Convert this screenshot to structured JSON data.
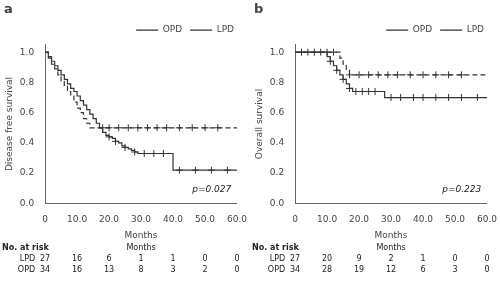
{
  "chart_data": [
    {
      "type": "step",
      "title": "a",
      "xlabel": "Months",
      "ylabel": "Disease free survival",
      "annotation": "p=0.027",
      "xlim": [
        0,
        60
      ],
      "ylim": [
        0.0,
        1.05
      ],
      "xticks": [
        0,
        {
          "value": 10,
          "label": "10.0"
        },
        {
          "value": 20,
          "label": "20.0"
        },
        {
          "value": 30,
          "label": "30.0"
        },
        {
          "value": 40,
          "label": "40.0"
        },
        {
          "value": 50,
          "label": "50.0"
        },
        {
          "value": 60,
          "label": "60.0"
        }
      ],
      "yticks": [
        {
          "value": 0.0,
          "label": "0.0"
        },
        0.2,
        0.4,
        0.6,
        0.8,
        {
          "value": 1.0,
          "label": "1.0"
        }
      ],
      "grid": false,
      "legend": "upper right",
      "series": [
        {
          "name": "OPD",
          "color": "#333333",
          "line_style": "solid",
          "x": [
            0,
            1,
            2,
            3,
            4,
            5,
            6,
            7,
            8,
            9,
            10,
            11,
            12,
            13,
            14,
            15,
            16,
            17,
            18,
            19,
            20,
            21,
            22,
            23,
            24,
            25,
            26,
            27,
            28,
            29,
            30,
            31,
            32,
            33,
            34,
            35,
            36,
            37,
            38,
            39,
            40,
            45,
            50,
            55,
            60
          ],
          "values": [
            1.0,
            0.97,
            0.94,
            0.91,
            0.88,
            0.85,
            0.82,
            0.79,
            0.76,
            0.74,
            0.71,
            0.68,
            0.65,
            0.62,
            0.59,
            0.56,
            0.53,
            0.5,
            0.47,
            0.45,
            0.44,
            0.43,
            0.41,
            0.4,
            0.38,
            0.37,
            0.36,
            0.35,
            0.34,
            0.33,
            0.33,
            0.33,
            0.33,
            0.33,
            0.33,
            0.33,
            0.33,
            0.33,
            0.33,
            0.33,
            0.22,
            0.22,
            0.22,
            0.22,
            0.22
          ],
          "censors": {
            "marker": "+",
            "x": [
              20,
              22,
              25,
              28,
              31,
              34,
              37,
              42,
              47,
              52,
              57
            ],
            "values": [
              0.44,
              0.41,
              0.37,
              0.34,
              0.33,
              0.33,
              0.33,
              0.22,
              0.22,
              0.22,
              0.22
            ]
          }
        },
        {
          "name": "LPD",
          "color": "#333333",
          "line_style": "dashed",
          "x": [
            0,
            1,
            2,
            3,
            4,
            5,
            6,
            7,
            8,
            9,
            10,
            11,
            12,
            13,
            14,
            15,
            16,
            17,
            18,
            20,
            22,
            25,
            28,
            30,
            35,
            40,
            45,
            50,
            55,
            60
          ],
          "values": [
            1.0,
            0.96,
            0.92,
            0.89,
            0.85,
            0.81,
            0.78,
            0.74,
            0.71,
            0.67,
            0.63,
            0.6,
            0.56,
            0.53,
            0.5,
            0.5,
            0.5,
            0.5,
            0.5,
            0.5,
            0.5,
            0.5,
            0.5,
            0.5,
            0.5,
            0.5,
            0.5,
            0.5,
            0.5,
            0.5
          ],
          "censors": {
            "marker": "+",
            "x": [
              18,
              20,
              23,
              26,
              29,
              32,
              35,
              38,
              42,
              46,
              50,
              54
            ],
            "values": [
              0.5,
              0.5,
              0.5,
              0.5,
              0.5,
              0.5,
              0.5,
              0.5,
              0.5,
              0.5,
              0.5,
              0.5
            ]
          }
        }
      ],
      "risk_table": {
        "title": "No. at risk",
        "label": "Months",
        "x": [
          0,
          10,
          20,
          30,
          40,
          50,
          60
        ],
        "rows": [
          {
            "name": "LPD",
            "values": [
              27,
              16,
              6,
              1,
              1,
              0,
              0
            ]
          },
          {
            "name": "OPD",
            "values": [
              34,
              16,
              13,
              8,
              3,
              2,
              0
            ]
          }
        ]
      }
    },
    {
      "type": "step",
      "title": "b",
      "xlabel": "Months",
      "ylabel": "Overall survival",
      "annotation": "p=0.223",
      "xlim": [
        0,
        60
      ],
      "ylim": [
        0.0,
        1.05
      ],
      "xticks": [
        0,
        {
          "value": 10,
          "label": "10.0"
        },
        {
          "value": 20,
          "label": "20.0"
        },
        {
          "value": 30,
          "label": "30.0"
        },
        {
          "value": 40,
          "label": "40.0"
        },
        {
          "value": 50,
          "label": "50.0"
        },
        {
          "value": 60,
          "label": "60.0"
        }
      ],
      "yticks": [
        {
          "value": 0.0,
          "label": "0.0"
        },
        0.2,
        0.4,
        0.6,
        0.8,
        {
          "value": 1.0,
          "label": "1.0"
        }
      ],
      "grid": false,
      "legend": "upper right",
      "series": [
        {
          "name": "OPD",
          "color": "#333333",
          "line_style": "solid",
          "x": [
            0,
            1,
            2,
            3,
            4,
            5,
            6,
            7,
            8,
            9,
            10,
            11,
            12,
            13,
            14,
            15,
            16,
            17,
            18,
            19,
            20,
            21,
            22,
            23,
            24,
            25,
            26,
            27,
            28,
            30,
            35,
            40,
            45,
            50,
            55,
            60
          ],
          "values": [
            1.0,
            1.0,
            1.0,
            1.0,
            1.0,
            1.0,
            1.0,
            1.0,
            1.0,
            1.0,
            0.97,
            0.94,
            0.91,
            0.88,
            0.85,
            0.82,
            0.79,
            0.76,
            0.74,
            0.74,
            0.74,
            0.74,
            0.74,
            0.74,
            0.74,
            0.74,
            0.74,
            0.74,
            0.7,
            0.7,
            0.7,
            0.7,
            0.7,
            0.7,
            0.7,
            0.7
          ],
          "censors": {
            "marker": "+",
            "x": [
              11,
              13,
              15,
              17,
              19,
              21,
              23,
              25,
              30,
              33,
              37,
              40,
              44,
              48,
              52,
              57
            ],
            "values": [
              0.94,
              0.88,
              0.82,
              0.76,
              0.74,
              0.74,
              0.74,
              0.74,
              0.7,
              0.7,
              0.7,
              0.7,
              0.7,
              0.7,
              0.7,
              0.7
            ]
          }
        },
        {
          "name": "LPD",
          "color": "#333333",
          "line_style": "dashed",
          "x": [
            0,
            1,
            2,
            3,
            4,
            5,
            6,
            7,
            8,
            9,
            10,
            11,
            12,
            13,
            14,
            15,
            16,
            17,
            18,
            19,
            20,
            22,
            25,
            28,
            30,
            35,
            40,
            45,
            50,
            55,
            60
          ],
          "values": [
            1.0,
            1.0,
            1.0,
            1.0,
            1.0,
            1.0,
            1.0,
            1.0,
            1.0,
            1.0,
            1.0,
            1.0,
            1.0,
            1.0,
            0.96,
            0.92,
            0.88,
            0.85,
            0.85,
            0.85,
            0.85,
            0.85,
            0.85,
            0.85,
            0.85,
            0.85,
            0.85,
            0.85,
            0.85,
            0.85,
            0.85
          ],
          "censors": {
            "marker": "+",
            "x": [
              2,
              4,
              6,
              8,
              10,
              12,
              17,
              20,
              23,
              26,
              29,
              32,
              36,
              40,
              44,
              48,
              52
            ],
            "values": [
              1.0,
              1.0,
              1.0,
              1.0,
              1.0,
              1.0,
              0.85,
              0.85,
              0.85,
              0.85,
              0.85,
              0.85,
              0.85,
              0.85,
              0.85,
              0.85,
              0.85
            ]
          }
        }
      ],
      "risk_table": {
        "title": "No. at risk",
        "label": "Months",
        "x": [
          0,
          10,
          20,
          30,
          40,
          50,
          60
        ],
        "rows": [
          {
            "name": "LPD",
            "values": [
              27,
              20,
              9,
              2,
              1,
              0,
              0
            ]
          },
          {
            "name": "OPD",
            "values": [
              34,
              28,
              19,
              12,
              6,
              3,
              0
            ]
          }
        ]
      }
    }
  ]
}
